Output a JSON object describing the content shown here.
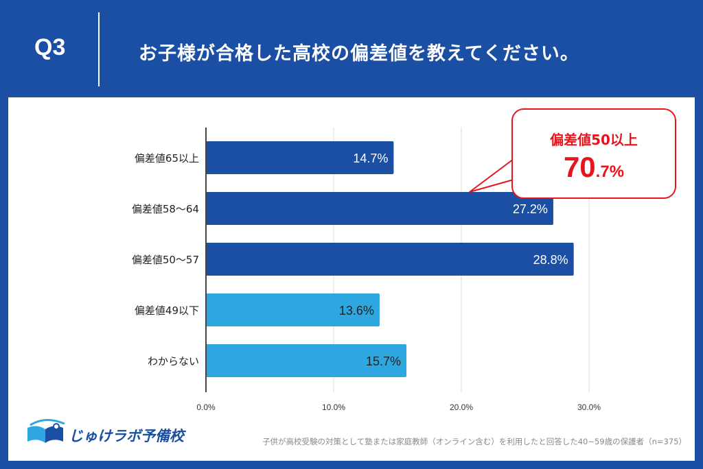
{
  "header": {
    "q_label": "Q3",
    "question": "お子様が合格した高校の偏差値を教えてください。"
  },
  "callout": {
    "line1": "偏差値50以上",
    "value_big": "70",
    "value_small": ".7%"
  },
  "logo": {
    "text": "じゅけラボ予備校",
    "icon": "open-book-icon"
  },
  "footnote": "子供が高校受験の対策として塾または家庭教師（オンライン含む）を利用したと回答した40~59歳の保護者（n=375）",
  "colors": {
    "header_bg": "#1a4fa3",
    "bar_dark": "#1a4fa3",
    "bar_light": "#2ea6df",
    "callout_red": "#e8141c",
    "grid": "#d9d9d9"
  },
  "chart_data": {
    "type": "bar",
    "orientation": "horizontal",
    "categories": [
      "偏差値65以上",
      "偏差値58〜64",
      "偏差値50〜57",
      "偏差値49以下",
      "わからない"
    ],
    "values": [
      14.7,
      27.2,
      28.8,
      13.6,
      15.7
    ],
    "value_labels": [
      "14.7%",
      "27.2%",
      "28.8%",
      "13.6%",
      "15.7%"
    ],
    "bar_colors": [
      "#1a4fa3",
      "#1a4fa3",
      "#1a4fa3",
      "#2ea6df",
      "#2ea6df"
    ],
    "xlim": [
      0,
      30
    ],
    "xticks": [
      0,
      10,
      20,
      30
    ],
    "xtick_labels": [
      "0.0%",
      "10.0%",
      "20.0%",
      "30.0%"
    ],
    "grid": true
  }
}
